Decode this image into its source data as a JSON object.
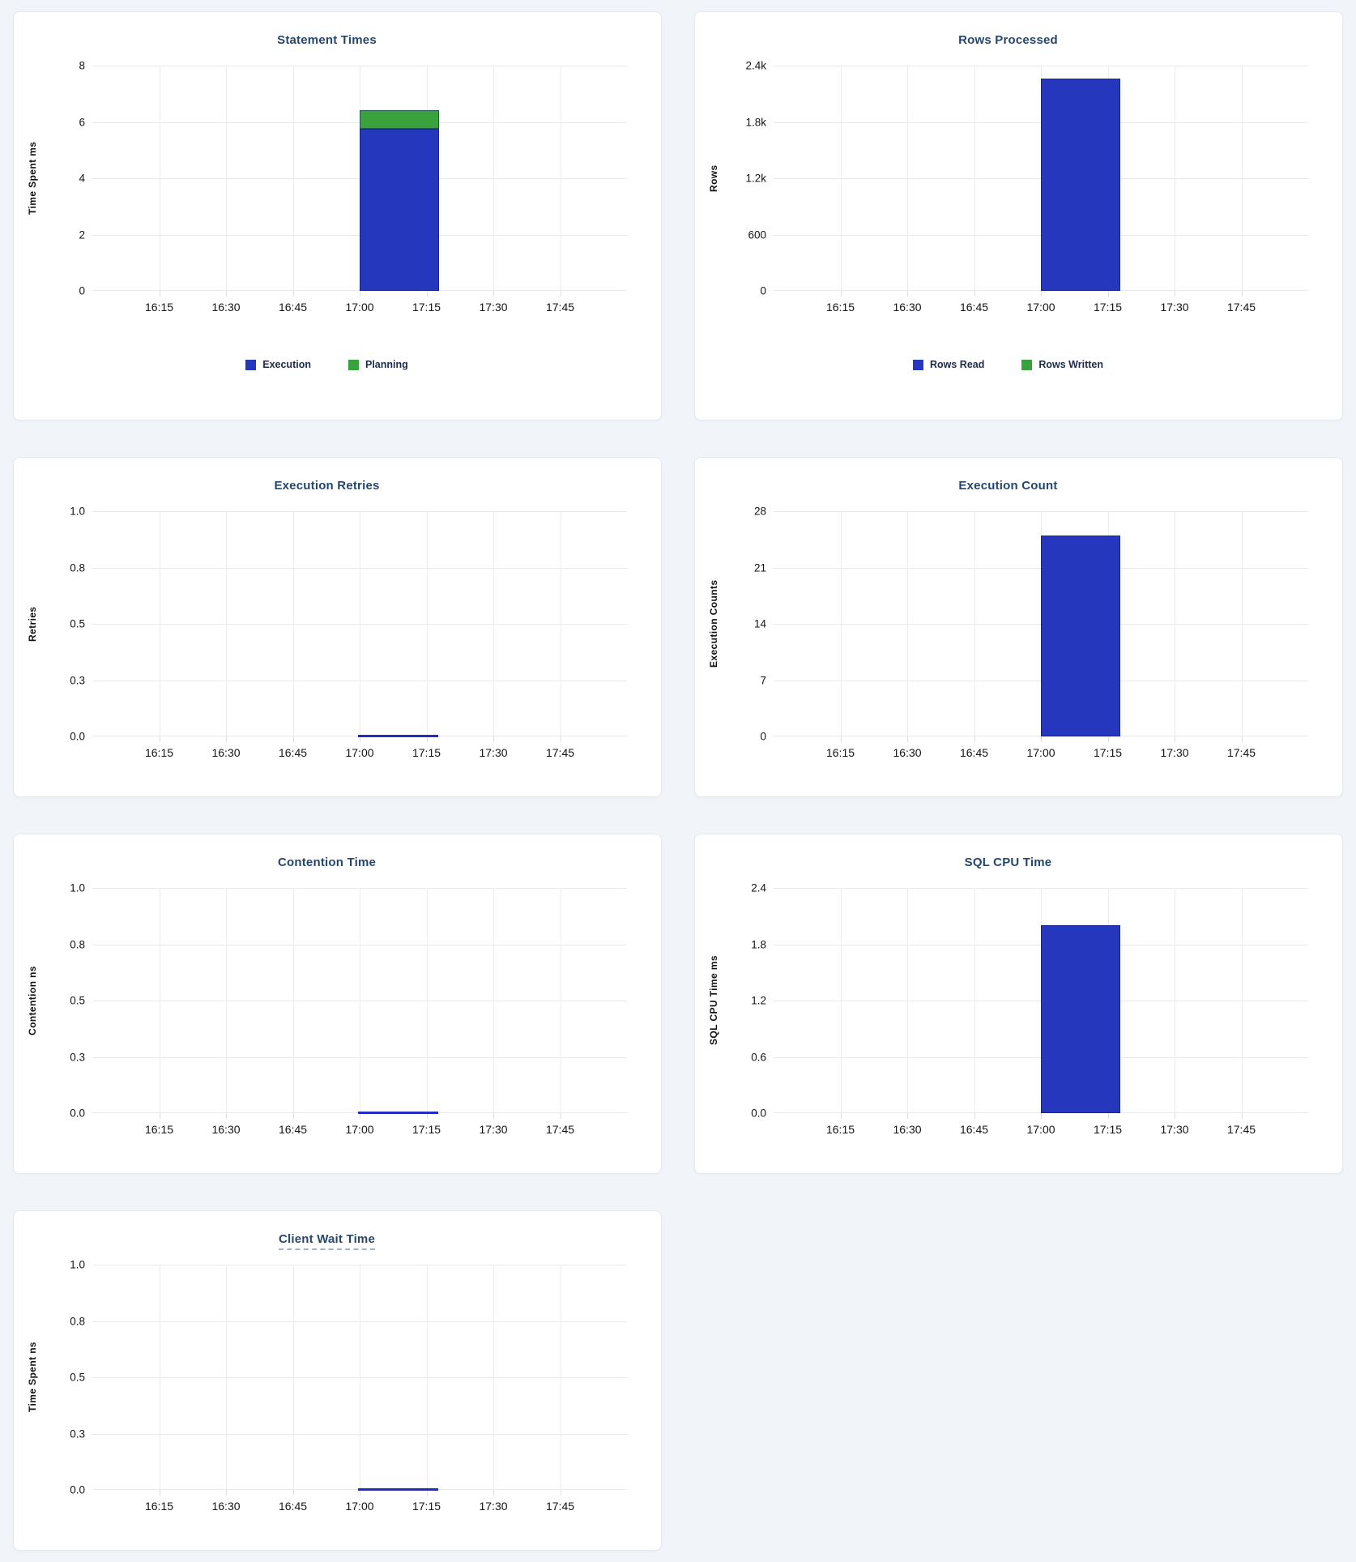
{
  "colors": {
    "chart_blue": "#2437bd",
    "chart_green": "#3aa23c",
    "title_navy": "#25476e",
    "page_background": "#f1f4f9",
    "zero_line_blue": "#222cc2"
  },
  "chart_data": [
    {
      "type": "bar",
      "title": "Statement Times",
      "ylabel": "Time Spent ms",
      "ylim": [
        0,
        8
      ],
      "ymax": 8,
      "yticks": [
        "8",
        "6",
        "4",
        "2",
        "0"
      ],
      "xticks": [
        "16:15",
        "16:30",
        "16:45",
        "17:00",
        "17:15",
        "17:30",
        "17:45"
      ],
      "x_bar_interval": [
        "17:00",
        "17:18"
      ],
      "grid": "on",
      "legend_position": "bottom-center",
      "series": [
        {
          "name": "Execution",
          "value": 5.75,
          "color": "#2437bd"
        },
        {
          "name": "Planning",
          "value": 0.68,
          "color": "#3aa23c"
        }
      ],
      "show_legend": true
    },
    {
      "type": "bar",
      "title": "Rows Processed",
      "ylabel": "Rows",
      "ylim": [
        0,
        2400
      ],
      "ymax": 2400,
      "yticks": [
        "2.4k",
        "1.8k",
        "1.2k",
        "600",
        "0"
      ],
      "xticks": [
        "16:15",
        "16:30",
        "16:45",
        "17:00",
        "17:15",
        "17:30",
        "17:45"
      ],
      "x_bar_interval": [
        "17:00",
        "17:18"
      ],
      "grid": "on",
      "legend_position": "bottom-center",
      "series": [
        {
          "name": "Rows Read",
          "value": 2260,
          "color": "#2437bd"
        },
        {
          "name": "Rows Written",
          "value": 0,
          "color": "#3aa23c"
        }
      ],
      "show_legend": true
    },
    {
      "type": "line",
      "title": "Execution Retries",
      "ylabel": "Retries",
      "ylim": [
        0,
        1
      ],
      "ymax": 1,
      "yticks": [
        "1.0",
        "0.8",
        "0.5",
        "0.3",
        "0.0"
      ],
      "xticks": [
        "16:15",
        "16:30",
        "16:45",
        "17:00",
        "17:15",
        "17:30",
        "17:45"
      ],
      "grid": "on",
      "line": {
        "value": 0,
        "x_interval": [
          "17:00",
          "17:18"
        ],
        "color": "#222cc2"
      },
      "show_legend": false
    },
    {
      "type": "bar",
      "title": "Execution Count",
      "ylabel": "Execution Counts",
      "ylim": [
        0,
        28
      ],
      "ymax": 28,
      "yticks": [
        "28",
        "21",
        "14",
        "7",
        "0"
      ],
      "xticks": [
        "16:15",
        "16:30",
        "16:45",
        "17:00",
        "17:15",
        "17:30",
        "17:45"
      ],
      "x_bar_interval": [
        "17:00",
        "17:18"
      ],
      "grid": "on",
      "series": [
        {
          "value": 25,
          "color": "#2437bd"
        }
      ],
      "show_legend": false
    },
    {
      "type": "line",
      "title": "Contention Time",
      "ylabel": "Contention ns",
      "ylim": [
        0,
        1
      ],
      "ymax": 1,
      "yticks": [
        "1.0",
        "0.8",
        "0.5",
        "0.3",
        "0.0"
      ],
      "xticks": [
        "16:15",
        "16:30",
        "16:45",
        "17:00",
        "17:15",
        "17:30",
        "17:45"
      ],
      "grid": "on",
      "line": {
        "value": 0,
        "x_interval": [
          "17:00",
          "17:18"
        ],
        "color": "#222cc2"
      },
      "show_legend": false
    },
    {
      "type": "bar",
      "title": "SQL CPU Time",
      "ylabel": "SQL CPU Time ms",
      "ylim": [
        0,
        2.4
      ],
      "ymax": 2.4,
      "yticks": [
        "2.4",
        "1.8",
        "1.2",
        "0.6",
        "0.0"
      ],
      "xticks": [
        "16:15",
        "16:30",
        "16:45",
        "17:00",
        "17:15",
        "17:30",
        "17:45"
      ],
      "x_bar_interval": [
        "17:00",
        "17:18"
      ],
      "grid": "on",
      "series": [
        {
          "value": 2.0,
          "color": "#2437bd"
        }
      ],
      "show_legend": false
    },
    {
      "type": "line",
      "title": "Client Wait Time",
      "title_underline": "dashed",
      "ylabel": "Time Spent ns",
      "ylim": [
        0,
        1
      ],
      "ymax": 1,
      "yticks": [
        "1.0",
        "0.8",
        "0.5",
        "0.3",
        "0.0"
      ],
      "xticks": [
        "16:15",
        "16:30",
        "16:45",
        "17:00",
        "17:15",
        "17:30",
        "17:45"
      ],
      "grid": "on",
      "line": {
        "value": 0,
        "x_interval": [
          "17:00",
          "17:18"
        ],
        "color": "#222cc2"
      },
      "show_legend": false
    }
  ]
}
